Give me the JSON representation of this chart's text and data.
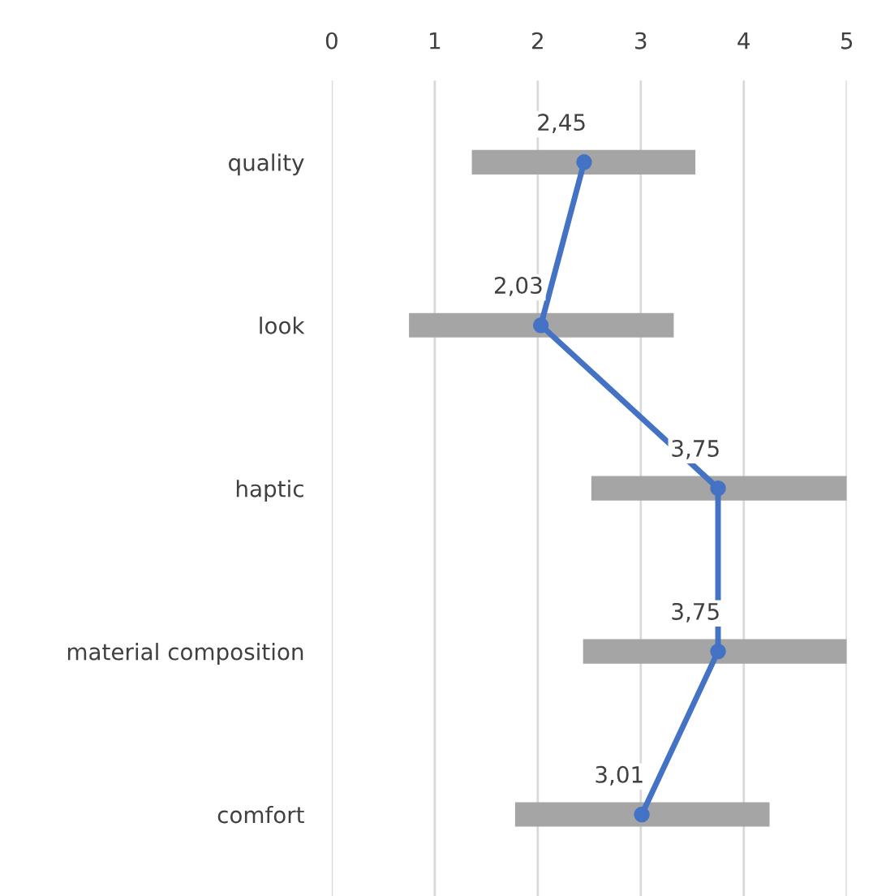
{
  "chart_data": {
    "type": "line",
    "orientation": "horizontal",
    "categories": [
      "quality",
      "look",
      "haptic",
      "material composition",
      "comfort"
    ],
    "series": [
      {
        "type": "bar",
        "color": "#a5a5a5",
        "base": [
          1.36,
          0.75,
          2.52,
          2.44,
          1.78
        ],
        "values": [
          2.17,
          2.57,
          2.48,
          2.56,
          2.47
        ]
      },
      {
        "color": "#4472c4",
        "values": [
          2.45,
          2.03,
          3.75,
          3.75,
          3.01
        ],
        "value_labels": [
          "2,45",
          "2,03",
          "3,75",
          "3,75",
          "3,01"
        ]
      }
    ],
    "marker": "circle",
    "line_style": "solid",
    "xlim": [
      0,
      5
    ],
    "xticks": [
      0,
      1,
      2,
      3,
      4,
      5
    ],
    "grid": "x"
  }
}
